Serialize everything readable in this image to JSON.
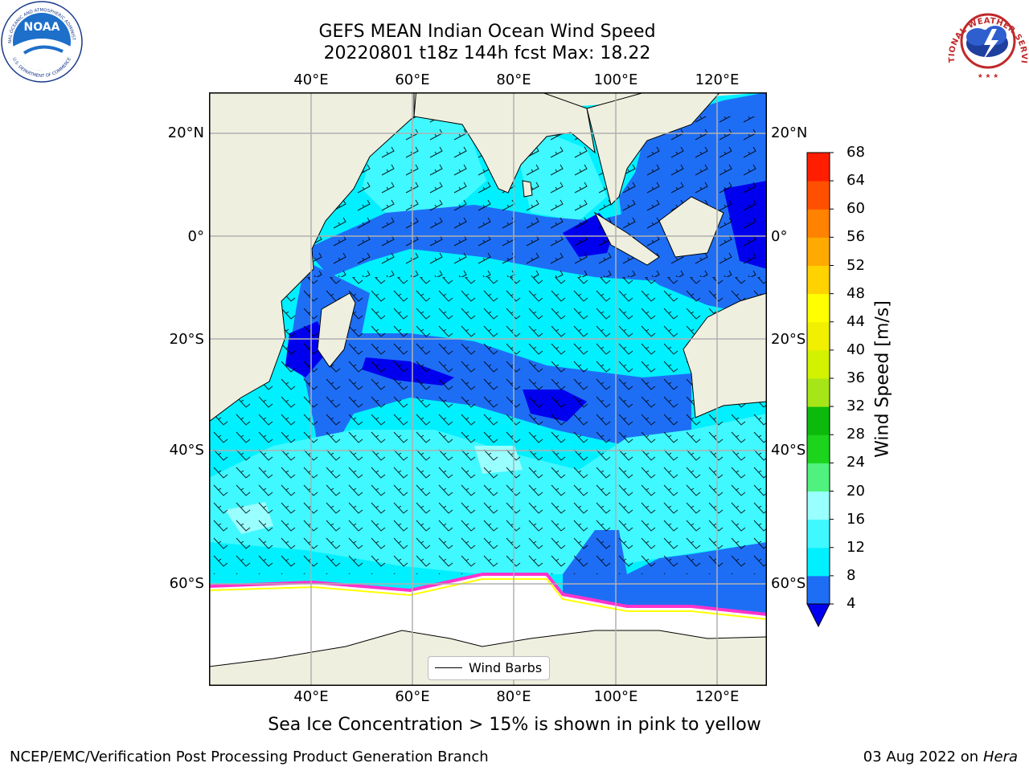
{
  "title_line1": "GEFS MEAN Indian Ocean Wind Speed",
  "title_line2": "20220801 t18z 144h fcst   Max: 18.22",
  "logos": {
    "left": "noaa-logo",
    "right": "nws-logo",
    "left_text": [
      "NOAA",
      "NATIONAL OCEANIC AND ATMOSPHERIC ADMINISTRATION",
      "U.S. DEPARTMENT OF COMMERCE"
    ],
    "right_text": "NATIONAL WEATHER SERVICE"
  },
  "map": {
    "lon_ticks": [
      "40°E",
      "60°E",
      "80°E",
      "100°E",
      "120°E"
    ],
    "lat_ticks": [
      "20°N",
      "0°",
      "20°S",
      "40°S",
      "60°S"
    ],
    "legend_label": "Wind Barbs",
    "colors": {
      "land": "#efefdf",
      "ice": "#ffffff",
      "ice_edge": [
        "#ff33cc",
        "#ffff00"
      ]
    }
  },
  "colorbar": {
    "title": "Wind Speed [m/s]",
    "levels": [
      "4",
      "8",
      "12",
      "16",
      "20",
      "24",
      "28",
      "32",
      "36",
      "40",
      "44",
      "48",
      "52",
      "56",
      "60",
      "64",
      "68"
    ],
    "colors": [
      "#0000ee",
      "#1e6ef5",
      "#00f0ff",
      "#40f8ff",
      "#99ffff",
      "#4ff27e",
      "#1cd41c",
      "#0cba0c",
      "#a6e619",
      "#d2f200",
      "#f0f000",
      "#ffff00",
      "#ffd200",
      "#ffaa00",
      "#ff8200",
      "#ff5000",
      "#ff1e00",
      "#ff0000"
    ]
  },
  "bottom_note": "Sea Ice Concentration > 15% is shown in pink to yellow",
  "footer_left": "NCEP/EMC/Verification Post Processing Product Generation Branch",
  "footer_date": "03 Aug 2022 on",
  "footer_host": "Hera"
}
